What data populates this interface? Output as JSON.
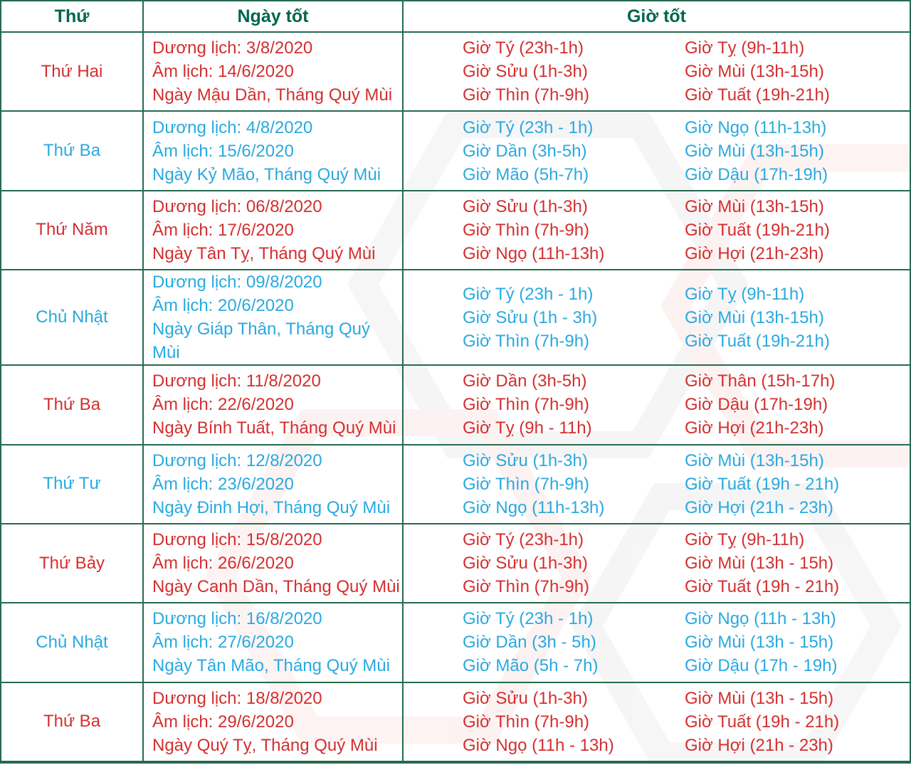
{
  "colors": {
    "header_green": "#00664e",
    "border_green": "#256a50",
    "red": "#d32f2f",
    "blue": "#29a9e0",
    "watermark_gray": "#f1f1f1",
    "watermark_pink": "#fcecec"
  },
  "header": {
    "col_day": "Thứ",
    "col_date": "Ngày tốt",
    "col_hours": "Giờ tốt"
  },
  "rows": [
    {
      "color": "red",
      "day": "Thứ Hai",
      "date_lines": [
        "Dương lịch: 3/8/2020",
        "Âm lịch: 14/6/2020",
        "Ngày Mậu Dần, Tháng Quý Mùi"
      ],
      "hours_left": [
        "Giờ Tý (23h-1h)",
        "Giờ Sửu (1h-3h)",
        "Giờ Thìn (7h-9h)"
      ],
      "hours_right": [
        "Giờ Tỵ (9h-11h)",
        "Giờ Mùi (13h-15h)",
        "Giờ Tuất (19h-21h)"
      ]
    },
    {
      "color": "blue",
      "day": "Thứ Ba",
      "date_lines": [
        "Dương lịch: 4/8/2020",
        "Âm lịch: 15/6/2020",
        "Ngày Kỷ Mão, Tháng Quý Mùi"
      ],
      "hours_left": [
        "Giờ Tý (23h - 1h)",
        "Giờ Dần (3h-5h)",
        "Giờ Mão (5h-7h)"
      ],
      "hours_right": [
        "Giờ Ngọ (11h-13h)",
        "Giờ Mùi (13h-15h)",
        "Giờ Dậu (17h-19h)"
      ]
    },
    {
      "color": "red",
      "day": "Thứ Năm",
      "date_lines": [
        "Dương lịch: 06/8/2020",
        "Âm lịch: 17/6/2020",
        "Ngày Tân Tỵ, Tháng Quý Mùi"
      ],
      "hours_left": [
        "Giờ Sửu (1h-3h)",
        "Giờ Thìn (7h-9h)",
        "Giờ Ngọ (11h-13h)"
      ],
      "hours_right": [
        "Giờ Mùi (13h-15h)",
        "Giờ Tuất (19h-21h)",
        "Giờ Hợi (21h-23h)"
      ]
    },
    {
      "color": "blue",
      "day": "Chủ Nhật",
      "date_lines": [
        "Dương lịch: 09/8/2020",
        "Âm lịch: 20/6/2020",
        "Ngày Giáp Thân, Tháng Quý Mùi"
      ],
      "hours_left": [
        "Giờ Tý (23h - 1h)",
        "Giờ Sửu (1h - 3h)",
        "Giờ Thìn (7h-9h)"
      ],
      "hours_right": [
        "Giờ Tỵ (9h-11h)",
        "Giờ Mùi (13h-15h)",
        "Giờ Tuất (19h-21h)"
      ]
    },
    {
      "color": "red",
      "day": "Thứ Ba",
      "date_lines": [
        "Dương lịch: 11/8/2020",
        "Âm lịch: 22/6/2020",
        "Ngày Bính Tuất, Tháng Quý Mùi"
      ],
      "hours_left": [
        "Giờ Dần (3h-5h)",
        "Giờ Thìn (7h-9h)",
        "Giờ Tỵ (9h - 11h)"
      ],
      "hours_right": [
        "Giờ Thân (15h-17h)",
        "Giờ Dậu (17h-19h)",
        "Giờ Hợi (21h-23h)"
      ]
    },
    {
      "color": "blue",
      "day": "Thứ Tư",
      "date_lines": [
        "Dương lịch: 12/8/2020",
        "Âm lịch: 23/6/2020",
        "Ngày Đinh Hợi, Tháng Quý Mùi"
      ],
      "hours_left": [
        "Giờ Sửu (1h-3h)",
        "Giờ Thìn (7h-9h)",
        "Giờ Ngọ (11h-13h)"
      ],
      "hours_right": [
        "Giờ Mùi (13h-15h)",
        "Giờ Tuất (19h - 21h)",
        "Giờ Hợi (21h - 23h)"
      ]
    },
    {
      "color": "red",
      "day": "Thứ Bảy",
      "date_lines": [
        "Dương lịch: 15/8/2020",
        "Âm lịch: 26/6/2020",
        "Ngày Canh Dần, Tháng Quý Mùi"
      ],
      "hours_left": [
        "Giờ Tý (23h-1h)",
        "Giờ Sửu (1h-3h)",
        "Giờ Thìn (7h-9h)"
      ],
      "hours_right": [
        "Giờ Tỵ (9h-11h)",
        "Giờ Mùi (13h - 15h)",
        "Giờ Tuất (19h - 21h)"
      ]
    },
    {
      "color": "blue",
      "day": "Chủ Nhật",
      "date_lines": [
        "Dương lịch: 16/8/2020",
        "Âm lịch: 27/6/2020",
        "Ngày Tân Mão, Tháng Quý Mùi"
      ],
      "hours_left": [
        "Giờ Tý (23h - 1h)",
        "Giờ Dần (3h - 5h)",
        "Giờ Mão (5h - 7h)"
      ],
      "hours_right": [
        "Giờ Ngọ (11h - 13h)",
        "Giờ Mùi (13h - 15h)",
        "Giờ Dậu (17h - 19h)"
      ]
    },
    {
      "color": "red",
      "day": "Thứ Ba",
      "date_lines": [
        "Dương lịch: 18/8/2020",
        "Âm lịch: 29/6/2020",
        "Ngày Quý Tỵ, Tháng Quý Mùi"
      ],
      "hours_left": [
        "Giờ Sửu (1h-3h)",
        "Giờ Thìn (7h-9h)",
        "Giờ Ngọ (11h - 13h)"
      ],
      "hours_right": [
        "Giờ Mùi (13h - 15h)",
        "Giờ Tuất (19h - 21h)",
        "Giờ Hợi (21h - 23h)"
      ]
    }
  ]
}
